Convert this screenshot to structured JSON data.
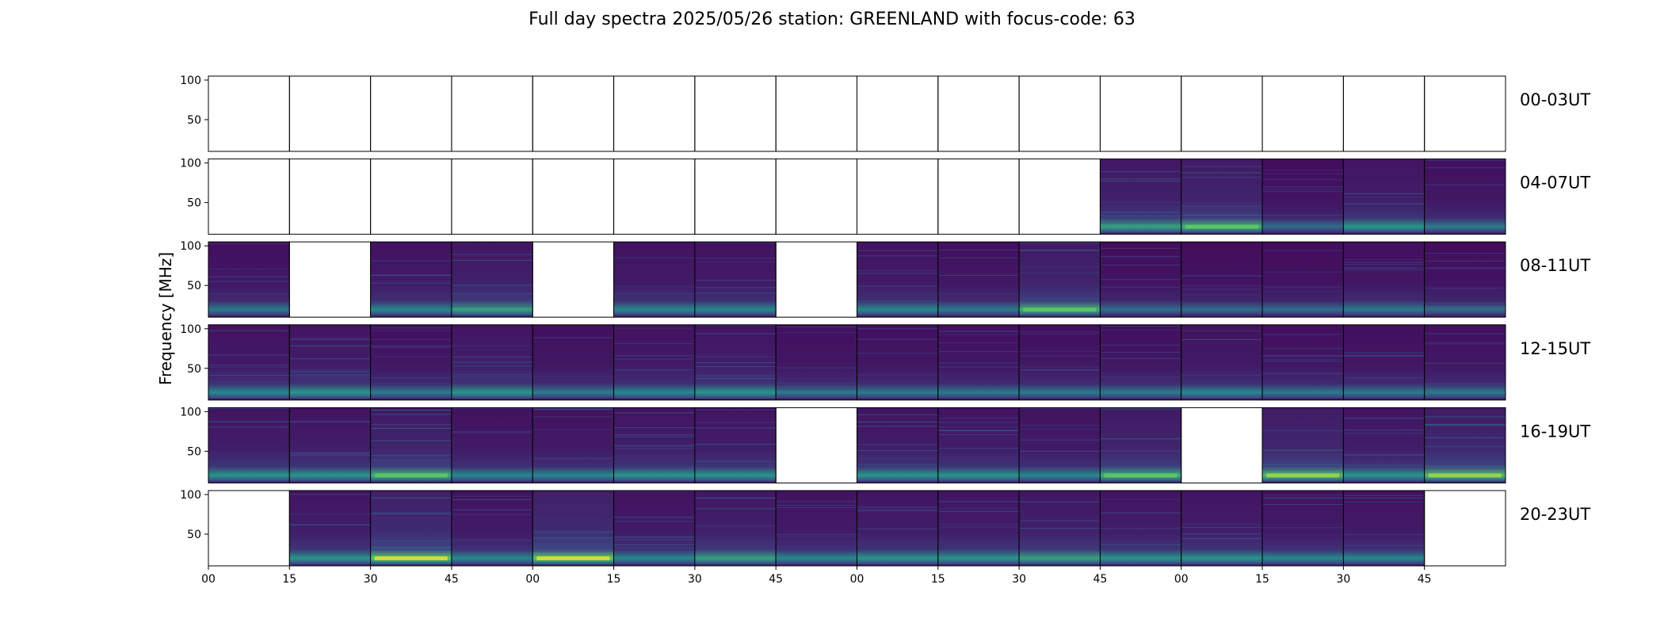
{
  "chart_data": {
    "type": "heatmap",
    "title": "Full day spectra 2025/05/26 station: GREENLAND with focus-code: 63",
    "ylabel": "Frequency [MHz]",
    "xlabel": "",
    "y_ticks": [
      50,
      100
    ],
    "x_ticks": [
      "00",
      "15",
      "30",
      "45",
      "00",
      "15",
      "30",
      "45",
      "00",
      "15",
      "30",
      "45",
      "00",
      "15",
      "30",
      "45"
    ],
    "panels_per_row": 16,
    "rows": [
      {
        "label": "00-03UT",
        "present": [
          0,
          0,
          0,
          0,
          0,
          0,
          0,
          0,
          0,
          0,
          0,
          0,
          0,
          0,
          0,
          0
        ],
        "activity": [
          0,
          0,
          0,
          0,
          0,
          0,
          0,
          0,
          0,
          0,
          0,
          0,
          0,
          0,
          0,
          0
        ]
      },
      {
        "label": "04-07UT",
        "present": [
          0,
          0,
          0,
          0,
          0,
          0,
          0,
          0,
          0,
          0,
          0,
          1,
          1,
          1,
          1,
          1
        ],
        "activity": [
          0,
          0,
          0,
          0,
          0,
          0,
          0,
          0,
          0,
          0,
          0,
          0.6,
          0.7,
          0.2,
          0.5,
          0.3
        ]
      },
      {
        "label": "08-11UT",
        "present": [
          1,
          0,
          1,
          1,
          0,
          1,
          1,
          0,
          1,
          1,
          1,
          1,
          1,
          1,
          1,
          1
        ],
        "activity": [
          0.3,
          0,
          0.4,
          0.6,
          0,
          0.4,
          0.4,
          0,
          0.4,
          0.3,
          0.7,
          0.2,
          0.2,
          0.2,
          0.3,
          0.2
        ]
      },
      {
        "label": "12-15UT",
        "present": [
          1,
          1,
          1,
          1,
          1,
          1,
          1,
          1,
          1,
          1,
          1,
          1,
          1,
          1,
          1,
          1
        ],
        "activity": [
          0.4,
          0.5,
          0.3,
          0.5,
          0.3,
          0.4,
          0.5,
          0.3,
          0.3,
          0.3,
          0.3,
          0.3,
          0.4,
          0.3,
          0.3,
          0.3
        ]
      },
      {
        "label": "16-19UT",
        "present": [
          1,
          1,
          1,
          1,
          1,
          1,
          1,
          0,
          1,
          1,
          1,
          1,
          0,
          1,
          1,
          1
        ],
        "activity": [
          0.5,
          0.5,
          0.7,
          0.4,
          0.4,
          0.5,
          0.5,
          0,
          0.5,
          0.5,
          0.4,
          0.7,
          0,
          0.8,
          0.5,
          0.8
        ]
      },
      {
        "label": "20-23UT",
        "present": [
          0,
          1,
          1,
          1,
          1,
          1,
          1,
          1,
          1,
          1,
          1,
          1,
          1,
          1,
          1,
          0
        ],
        "activity": [
          0,
          0.5,
          0.9,
          0.4,
          0.9,
          0.4,
          0.6,
          0.4,
          0.5,
          0.5,
          0.6,
          0.5,
          0.5,
          0.4,
          0.4,
          0
        ]
      }
    ],
    "colormap": [
      "#440154",
      "#3b528b",
      "#21918c",
      "#5ec962",
      "#fde725"
    ],
    "grid": false,
    "legend": "none"
  }
}
